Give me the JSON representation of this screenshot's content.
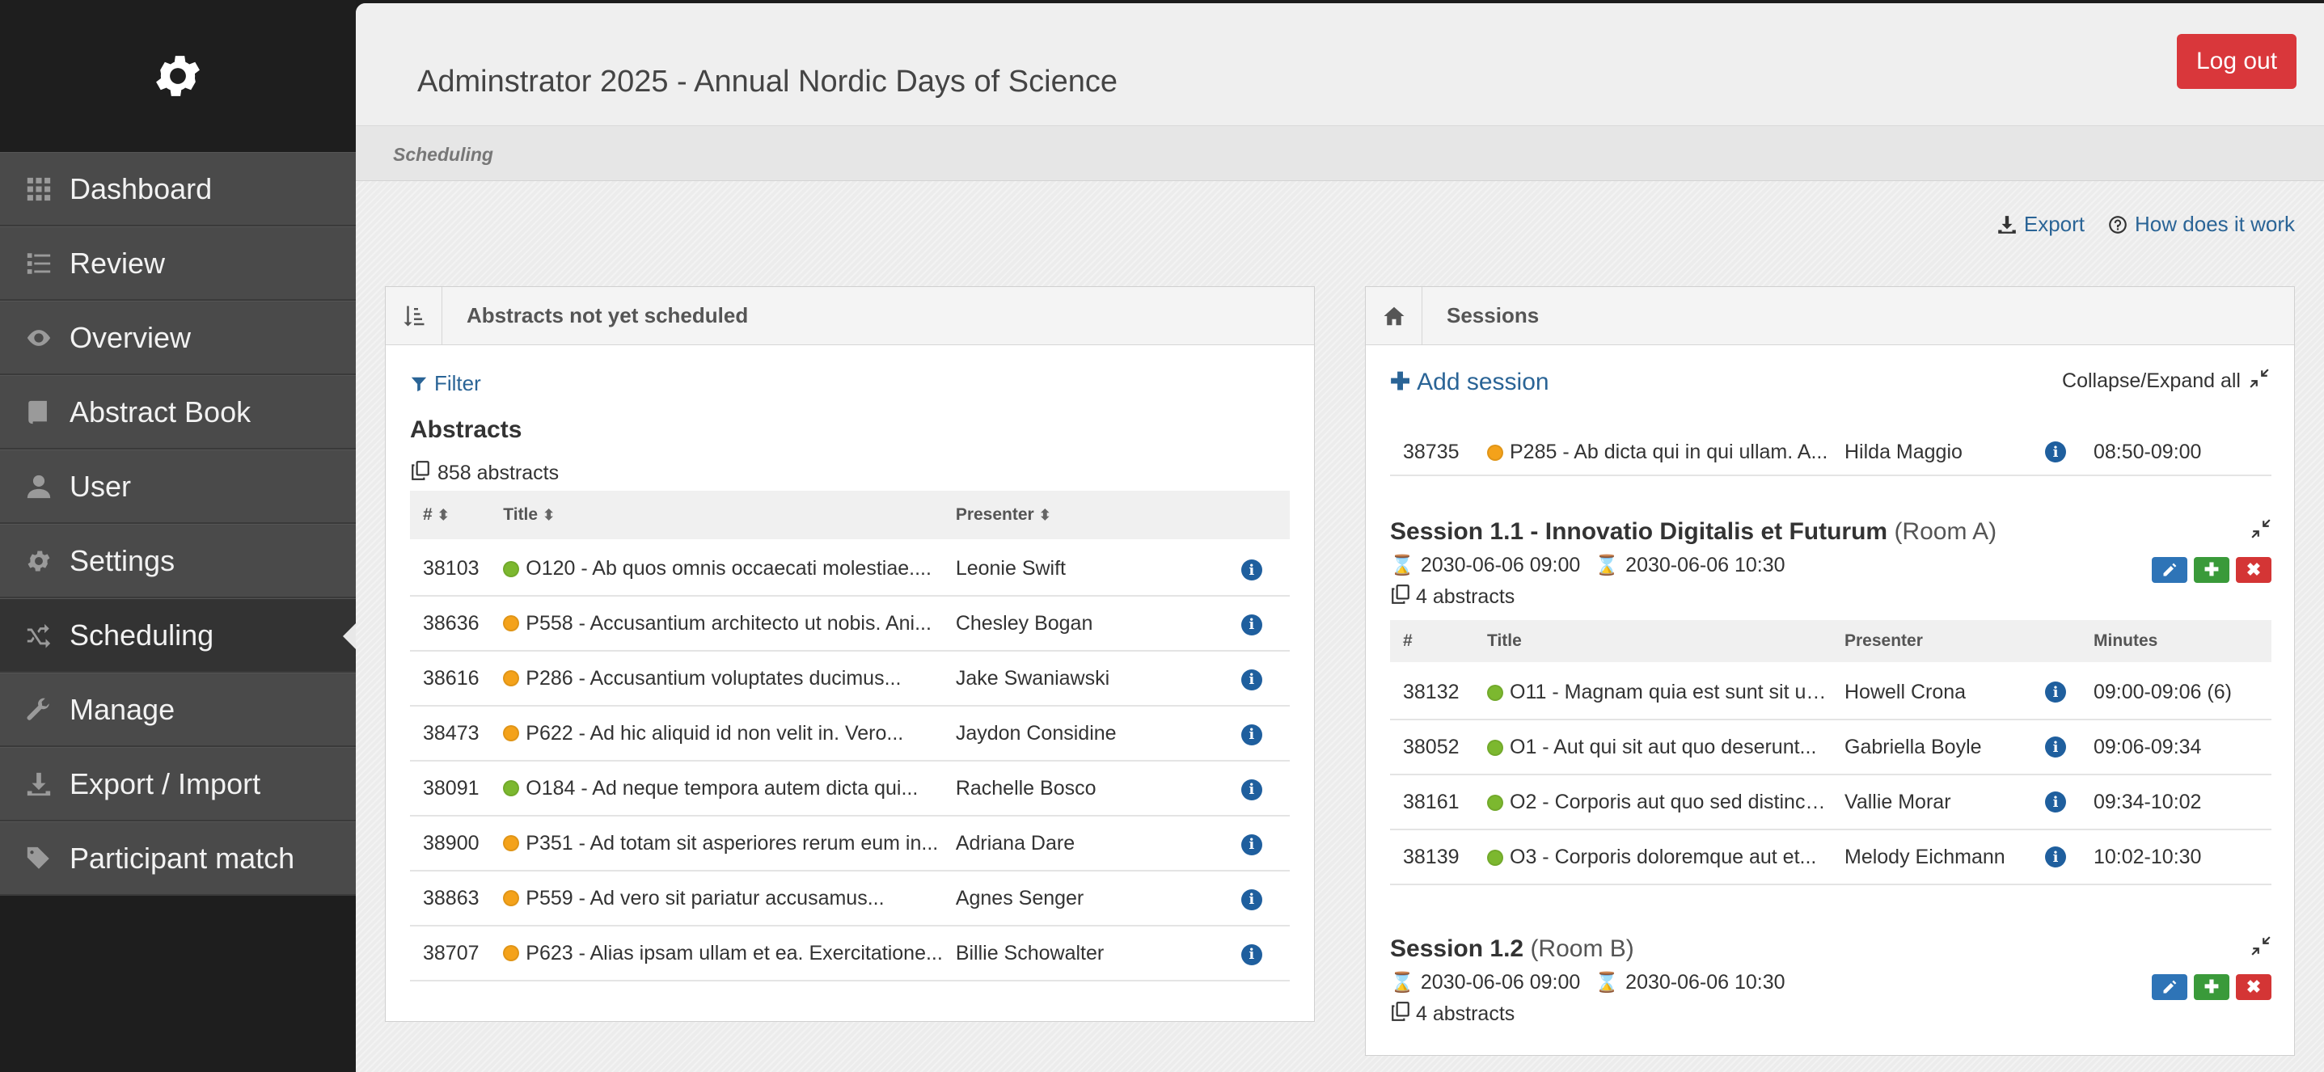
{
  "sidebar": {
    "items": [
      {
        "label": "Dashboard",
        "icon": "grid-icon"
      },
      {
        "label": "Review",
        "icon": "list-icon"
      },
      {
        "label": "Overview",
        "icon": "eye-icon"
      },
      {
        "label": "Abstract Book",
        "icon": "book-icon"
      },
      {
        "label": "User",
        "icon": "user-icon"
      },
      {
        "label": "Settings",
        "icon": "gear-icon"
      },
      {
        "label": "Scheduling",
        "icon": "shuffle-icon",
        "active": true
      },
      {
        "label": "Manage",
        "icon": "wrench-icon"
      },
      {
        "label": "Export / Import",
        "icon": "download-icon"
      },
      {
        "label": "Participant match",
        "icon": "tags-icon"
      }
    ]
  },
  "header": {
    "title": "Adminstrator 2025 - Annual Nordic Days of Science",
    "logout_label": "Log out"
  },
  "breadcrumb": "Scheduling",
  "top_links": {
    "export_label": "Export",
    "help_label": "How does it work"
  },
  "left_panel": {
    "title": "Abstracts not yet scheduled",
    "filter_label": "Filter",
    "heading": "Abstracts",
    "count": "858 abstracts",
    "columns": {
      "id": "#",
      "title": "Title",
      "presenter": "Presenter"
    },
    "rows": [
      {
        "id": "38103",
        "status": "green",
        "title": "O120 - Ab quos omnis occaecati molestiae....",
        "presenter": "Leonie Swift"
      },
      {
        "id": "38636",
        "status": "orange",
        "title": "P558 - Accusantium architecto ut nobis. Ani...",
        "presenter": "Chesley Bogan"
      },
      {
        "id": "38616",
        "status": "orange",
        "title": "P286 - Accusantium voluptates ducimus...",
        "presenter": "Jake Swaniawski"
      },
      {
        "id": "38473",
        "status": "orange",
        "title": "P622 - Ad hic aliquid id non velit in. Vero...",
        "presenter": "Jaydon Considine"
      },
      {
        "id": "38091",
        "status": "green",
        "title": "O184 - Ad neque tempora autem dicta qui...",
        "presenter": "Rachelle Bosco"
      },
      {
        "id": "38900",
        "status": "orange",
        "title": "P351 - Ad totam sit asperiores rerum eum in...",
        "presenter": "Adriana Dare"
      },
      {
        "id": "38863",
        "status": "orange",
        "title": "P559 - Ad vero sit pariatur accusamus...",
        "presenter": "Agnes Senger"
      },
      {
        "id": "38707",
        "status": "orange",
        "title": "P623 - Alias ipsam ullam et ea. Exercitatione...",
        "presenter": "Billie Schowalter"
      }
    ]
  },
  "right_panel": {
    "title": "Sessions",
    "add_session_label": "Add session",
    "collapse_label": "Collapse/Expand all",
    "prev_row": {
      "id": "38735",
      "status": "orange",
      "title": "P285 - Ab dicta qui in qui ullam. A...",
      "presenter": "Hilda Maggio",
      "minutes": "08:50-09:00"
    },
    "sessions": [
      {
        "name": "Session 1.1 - Innovatio Digitalis et Futurum",
        "room": "(Room A)",
        "start": "2030-06-06 09:00",
        "end": "2030-06-06 10:30",
        "count": "4 abstracts",
        "columns": {
          "id": "#",
          "title": "Title",
          "presenter": "Presenter",
          "minutes": "Minutes"
        },
        "rows": [
          {
            "id": "38132",
            "status": "green",
            "title": "O11 - Magnam quia est sunt sit ut....",
            "presenter": "Howell Crona",
            "minutes": "09:00-09:06 (6)"
          },
          {
            "id": "38052",
            "status": "green",
            "title": "O1 - Aut qui sit aut quo deserunt...",
            "presenter": "Gabriella Boyle",
            "minutes": "09:06-09:34"
          },
          {
            "id": "38161",
            "status": "green",
            "title": "O2 - Corporis aut quo sed distincti...",
            "presenter": "Vallie Morar",
            "minutes": "09:34-10:02"
          },
          {
            "id": "38139",
            "status": "green",
            "title": "O3 - Corporis doloremque aut et...",
            "presenter": "Melody Eichmann",
            "minutes": "10:02-10:30"
          }
        ]
      },
      {
        "name": "Session 1.2",
        "room": "(Room B)",
        "start": "2030-06-06 09:00",
        "end": "2030-06-06 10:30",
        "count": "4 abstracts"
      }
    ]
  },
  "colors": {
    "accent": "#2a6496",
    "logout": "#d9373b",
    "status_green": "#7cb82f",
    "status_orange": "#f4a21a"
  }
}
